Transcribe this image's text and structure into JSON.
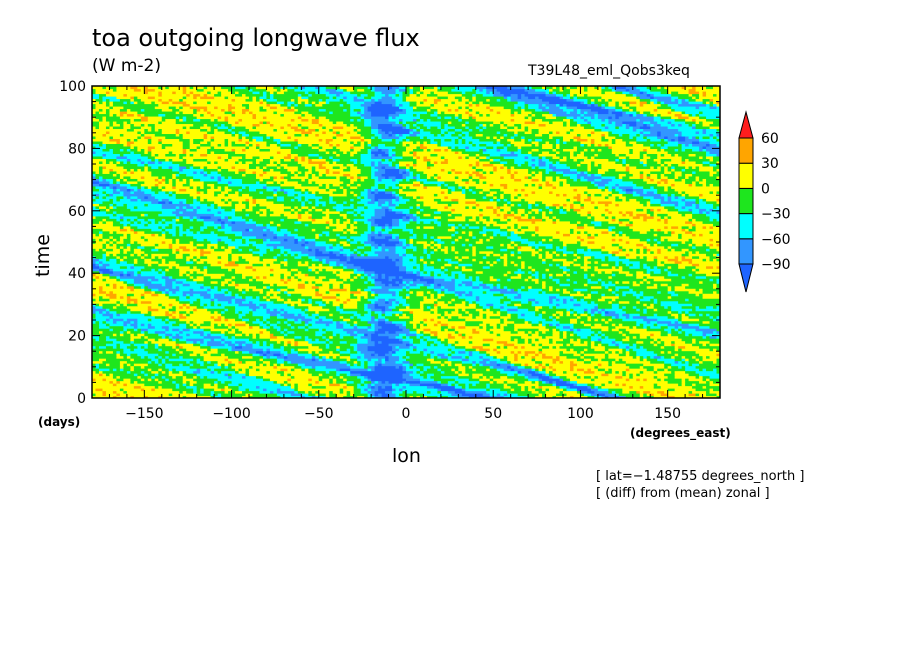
{
  "chart_data": {
    "type": "heatmap",
    "title": "toa outgoing longwave flux",
    "units": "(W m-2)",
    "run_label": "T39L48_eml_Qobs3keq",
    "xlabel": "lon",
    "x_unit": "(degrees_east)",
    "ylabel": "time",
    "y_unit": "(days)",
    "xlim": [
      -180,
      180
    ],
    "ylim": [
      0,
      100
    ],
    "x_ticks": [
      -150,
      -100,
      -50,
      0,
      50,
      100,
      150
    ],
    "x_tick_labels": [
      "−150",
      "−100",
      "−50",
      "0",
      "50",
      "100",
      "150"
    ],
    "y_ticks": [
      0,
      20,
      40,
      60,
      80,
      100
    ],
    "y_tick_labels": [
      "0",
      "20",
      "40",
      "60",
      "80",
      "100"
    ],
    "notes": [
      "[ lat=−1.48755 degrees_north ]",
      "[ (diff) from (mean) zonal ]"
    ],
    "colorbar": {
      "levels": [
        -90,
        -60,
        -30,
        0,
        30,
        60
      ],
      "labels": [
        "−90",
        "−60",
        "−30",
        "0",
        "30",
        "60"
      ],
      "colors": [
        "#1e64ff",
        "#3296ff",
        "#00ffff",
        "#1ee61e",
        "#ffff00",
        "#ffa500",
        "#ff1e1e"
      ]
    },
    "grid": false
  }
}
